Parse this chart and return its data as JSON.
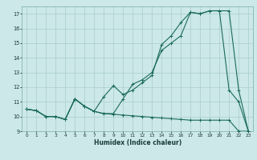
{
  "xlabel": "Humidex (Indice chaleur)",
  "x": [
    0,
    1,
    2,
    3,
    4,
    5,
    6,
    7,
    8,
    9,
    10,
    11,
    12,
    13,
    14,
    15,
    16,
    17,
    18,
    19,
    20,
    21,
    22,
    23
  ],
  "series1": [
    10.5,
    10.4,
    10.0,
    10.0,
    9.8,
    11.2,
    10.7,
    10.35,
    10.2,
    10.15,
    10.1,
    10.05,
    10.0,
    9.95,
    9.9,
    9.85,
    9.8,
    9.75,
    9.75,
    9.75,
    9.75,
    9.75,
    9.0,
    9.0
  ],
  "series2": [
    10.5,
    10.4,
    10.0,
    10.0,
    9.8,
    11.2,
    10.7,
    10.35,
    11.35,
    12.1,
    11.5,
    11.8,
    12.3,
    12.8,
    14.9,
    15.5,
    16.4,
    17.1,
    17.0,
    17.2,
    17.2,
    11.8,
    11.0,
    9.0
  ],
  "series3": [
    10.5,
    10.4,
    10.0,
    10.0,
    9.8,
    11.2,
    10.7,
    10.35,
    10.2,
    10.2,
    11.2,
    12.2,
    12.5,
    13.0,
    14.5,
    15.0,
    15.5,
    17.1,
    17.0,
    17.2,
    17.2,
    17.2,
    11.8,
    9.0
  ],
  "bg_color": "#cce8e8",
  "line_color": "#1a6b5a",
  "grid_color": "#aacccc",
  "ylim_min": 9,
  "ylim_max": 17.5,
  "xlim_min": -0.5,
  "xlim_max": 23.5
}
